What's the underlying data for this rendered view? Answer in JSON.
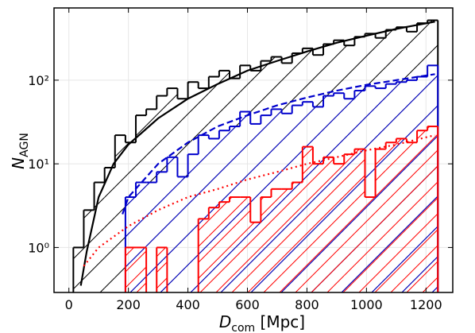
{
  "chart_data": {
    "type": "histogram",
    "x_label": {
      "main": "D",
      "sub": "com",
      "rest": " [Mpc]"
    },
    "y_label": {
      "main": "N",
      "sub": "AGN"
    },
    "bins": [
      15,
      50,
      85,
      120,
      155,
      190,
      225,
      260,
      295,
      330,
      365,
      400,
      435,
      470,
      505,
      540,
      575,
      610,
      645,
      680,
      715,
      750,
      785,
      820,
      855,
      890,
      925,
      960,
      995,
      1030,
      1065,
      1100,
      1135,
      1170,
      1205,
      1240
    ],
    "series": [
      {
        "color": "#000000",
        "values": [
          1,
          2.8,
          6,
          9,
          22,
          18,
          38,
          45,
          65,
          80,
          60,
          95,
          80,
          110,
          130,
          105,
          150,
          130,
          170,
          190,
          160,
          210,
          240,
          200,
          270,
          300,
          260,
          330,
          360,
          320,
          400,
          430,
          380,
          480,
          520
        ]
      },
      {
        "color": "#0000cc",
        "values": [
          0,
          0,
          0,
          0,
          0,
          4,
          6,
          6,
          8,
          12,
          7,
          13,
          22,
          20,
          25,
          28,
          42,
          30,
          38,
          45,
          40,
          50,
          55,
          48,
          65,
          70,
          60,
          75,
          85,
          80,
          90,
          95,
          100,
          110,
          150
        ]
      },
      {
        "color": "#ff0000",
        "values": [
          0,
          0,
          0,
          0,
          0,
          1,
          1,
          0,
          1,
          0,
          0,
          0,
          2.2,
          3,
          3.5,
          4,
          4,
          2,
          4,
          5,
          5,
          6,
          16,
          10,
          12,
          10,
          13,
          15,
          4,
          15,
          18,
          20,
          18,
          25,
          28
        ]
      }
    ],
    "curves": [
      {
        "color": "#000000",
        "style": "solid",
        "x": [
          40,
          60,
          100,
          150,
          200,
          300,
          400,
          500,
          600,
          700,
          800,
          900,
          1000,
          1100,
          1230
        ],
        "values": [
          0.35,
          0.9,
          4,
          10,
          17,
          35,
          60,
          90,
          130,
          170,
          220,
          280,
          340,
          410,
          500
        ]
      },
      {
        "color": "#0000cc",
        "style": "dashed",
        "x": [
          180,
          200,
          300,
          400,
          500,
          600,
          700,
          800,
          900,
          1000,
          1100,
          1230
        ],
        "values": [
          2.5,
          4,
          10,
          18,
          28,
          38,
          50,
          62,
          75,
          88,
          100,
          118
        ]
      },
      {
        "color": "#ff0000",
        "style": "dotted",
        "x": [
          50,
          100,
          200,
          300,
          400,
          500,
          600,
          700,
          800,
          900,
          1000,
          1100,
          1230
        ],
        "values": [
          0.6,
          1,
          1.8,
          2.8,
          4,
          5,
          6.5,
          8,
          10,
          12,
          14.5,
          17,
          22
        ]
      }
    ],
    "xlim": [
      -50,
      1290
    ],
    "xticks": [
      0,
      200,
      400,
      600,
      800,
      1000,
      1200
    ],
    "ylim": [
      0.29,
      730
    ],
    "log_y": true,
    "yticks": [
      {
        "value": 1,
        "label": "10⁰"
      },
      {
        "value": 10,
        "label": "10¹"
      },
      {
        "value": 100,
        "label": "10²"
      }
    ],
    "grid": true
  }
}
